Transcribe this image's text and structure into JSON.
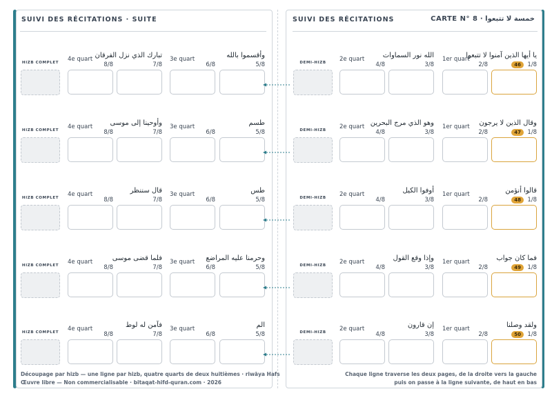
{
  "left_page": {
    "title": "SUIVI DES RÉCITATIONS · SUITE",
    "summary_label": "HIZB COMPLET",
    "quart_labels": [
      "3e quart",
      "4e quart"
    ],
    "rows": [
      {
        "cells": [
          {
            "ar": "وأقسموا بالله",
            "frac": "5/8"
          },
          {
            "ar": "",
            "frac": "6/8"
          },
          {
            "ar": "تبارك الذي نزل الفرقان",
            "frac": "7/8"
          },
          {
            "ar": "",
            "frac": "8/8"
          }
        ]
      },
      {
        "cells": [
          {
            "ar": "طسم",
            "frac": "5/8"
          },
          {
            "ar": "",
            "frac": "6/8"
          },
          {
            "ar": "وأوحينا إلى موسى",
            "frac": "7/8"
          },
          {
            "ar": "",
            "frac": "8/8"
          }
        ]
      },
      {
        "cells": [
          {
            "ar": "طس",
            "frac": "5/8"
          },
          {
            "ar": "",
            "frac": "6/8"
          },
          {
            "ar": "قال سننظر",
            "frac": "7/8"
          },
          {
            "ar": "",
            "frac": "8/8"
          }
        ]
      },
      {
        "cells": [
          {
            "ar": "وحرمنا عليه المراضع",
            "frac": "5/8"
          },
          {
            "ar": "",
            "frac": "6/8"
          },
          {
            "ar": "فلما قضى موسى",
            "frac": "7/8"
          },
          {
            "ar": "",
            "frac": "8/8"
          }
        ]
      },
      {
        "cells": [
          {
            "ar": "الم",
            "frac": "5/8"
          },
          {
            "ar": "",
            "frac": "6/8"
          },
          {
            "ar": "فآمن له لوط",
            "frac": "7/8"
          },
          {
            "ar": "",
            "frac": "8/8"
          }
        ]
      }
    ],
    "footer": [
      "Découpage par hizb — une ligne par hizb, quatre quarts de deux huitièmes · riwāya Hafs",
      "Œuvre libre — Non commercialisable · bitaqat-hifd-quran.com · 2026"
    ]
  },
  "right_page": {
    "title": "SUIVI DES RÉCITATIONS",
    "card_title": "خمسة لا تتبعوا · CARTE N° 8",
    "summary_label": "DEMI-HIZB",
    "quart_labels": [
      "1er quart",
      "2e quart"
    ],
    "rows": [
      {
        "hizb": "46",
        "cells": [
          {
            "ar": "يا أيها الذين آمنوا لا تتبعوا",
            "frac": "1/8"
          },
          {
            "ar": "",
            "frac": "2/8"
          },
          {
            "ar": "الله نور السماوات",
            "frac": "3/8"
          },
          {
            "ar": "",
            "frac": "4/8"
          }
        ]
      },
      {
        "hizb": "47",
        "cells": [
          {
            "ar": "وقال الذين لا يرجون",
            "frac": "1/8"
          },
          {
            "ar": "",
            "frac": "2/8"
          },
          {
            "ar": "وهو الذي مرج البحرين",
            "frac": "3/8"
          },
          {
            "ar": "",
            "frac": "4/8"
          }
        ]
      },
      {
        "hizb": "48",
        "cells": [
          {
            "ar": "قالوا أنؤمن",
            "frac": "1/8"
          },
          {
            "ar": "",
            "frac": "2/8"
          },
          {
            "ar": "أوفوا الكيل",
            "frac": "3/8"
          },
          {
            "ar": "",
            "frac": "4/8"
          }
        ]
      },
      {
        "hizb": "49",
        "cells": [
          {
            "ar": "فما كان جواب",
            "frac": "1/8"
          },
          {
            "ar": "",
            "frac": "2/8"
          },
          {
            "ar": "وإذا وقع القول",
            "frac": "3/8"
          },
          {
            "ar": "",
            "frac": "4/8"
          }
        ]
      },
      {
        "hizb": "50",
        "cells": [
          {
            "ar": "ولقد وصلنا",
            "frac": "1/8"
          },
          {
            "ar": "",
            "frac": "2/8"
          },
          {
            "ar": "إن قارون",
            "frac": "3/8"
          },
          {
            "ar": "",
            "frac": "4/8"
          }
        ]
      }
    ],
    "footer": [
      "Chaque ligne traverse les deux pages, de la droite vers la gauche",
      "puis on passe à la ligne suivante, de haut en bas"
    ]
  },
  "colors": {
    "accent": "#2e7e8c",
    "highlight": "#e0a437"
  }
}
